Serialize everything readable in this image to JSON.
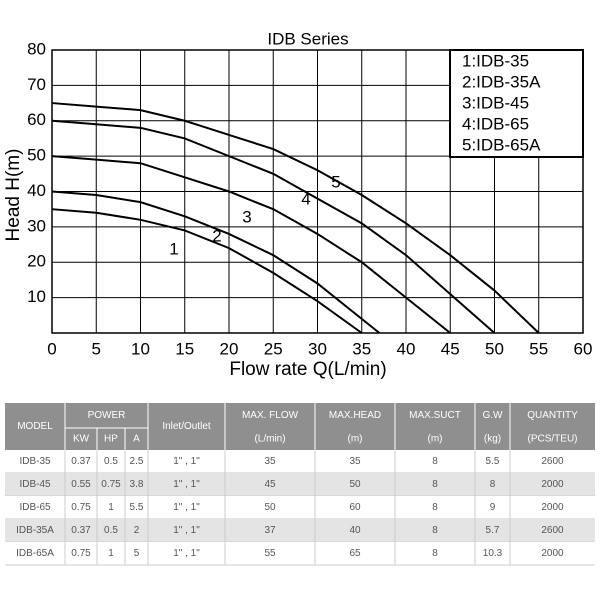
{
  "chart_data": {
    "type": "line",
    "title": "IDB Series",
    "x_label": "Flow rate Q(L/min)",
    "y_label": "Head H(m)",
    "xlim": [
      0,
      60
    ],
    "xticks": [
      0,
      5,
      10,
      15,
      20,
      25,
      30,
      35,
      40,
      45,
      50,
      55,
      60
    ],
    "ylim": [
      0,
      80
    ],
    "yticks": [
      10,
      20,
      30,
      40,
      50,
      60,
      70,
      80
    ],
    "grid": true,
    "legend": "top-right",
    "series": [
      {
        "name": "1:IDB-35",
        "label": "1",
        "color": "#000000",
        "x": [
          0,
          5,
          10,
          15,
          20,
          25,
          30,
          35
        ],
        "values": [
          35,
          34,
          32,
          29,
          24,
          17,
          9,
          0
        ]
      },
      {
        "name": "2:IDB-35A",
        "label": "2",
        "color": "#000000",
        "x": [
          0,
          5,
          10,
          15,
          20,
          25,
          30,
          35,
          37
        ],
        "values": [
          40,
          39,
          37,
          33,
          28,
          22,
          14,
          4,
          0
        ]
      },
      {
        "name": "3:IDB-45",
        "label": "3",
        "color": "#000000",
        "x": [
          0,
          5,
          10,
          15,
          20,
          25,
          30,
          35,
          40,
          45
        ],
        "values": [
          50,
          49,
          48,
          44,
          40,
          35,
          28,
          20,
          10,
          0
        ]
      },
      {
        "name": "4:IDB-65",
        "label": "4",
        "color": "#000000",
        "x": [
          0,
          5,
          10,
          15,
          20,
          25,
          30,
          35,
          40,
          45,
          50
        ],
        "values": [
          60,
          59,
          58,
          55,
          50,
          45,
          38,
          31,
          22,
          11,
          0
        ]
      },
      {
        "name": "5:IDB-65A",
        "label": "5",
        "color": "#000000",
        "x": [
          0,
          5,
          10,
          15,
          20,
          25,
          30,
          35,
          40,
          45,
          50,
          55
        ],
        "values": [
          65,
          64,
          63,
          60,
          56,
          52,
          46,
          39,
          31,
          22,
          12,
          0
        ]
      }
    ]
  },
  "table": {
    "header_top": [
      "MODEL",
      "POWER",
      "Inlet/Outlet",
      "MAX. FLOW",
      "MAX.HEAD",
      "MAX.SUCT",
      "G.W",
      "QUANTITY"
    ],
    "header_sub": [
      "KW",
      "HP",
      "A",
      "(L/min)",
      "(m)",
      "(m)",
      "(kg)",
      "(PCS/TEU)"
    ],
    "rows": [
      [
        "IDB-35",
        "0.37",
        "0.5",
        "2.5",
        "1\" , 1\"",
        "35",
        "35",
        "8",
        "5.5",
        "2600"
      ],
      [
        "IDB-45",
        "0.55",
        "0.75",
        "3.8",
        "1\" , 1\"",
        "45",
        "50",
        "8",
        "8",
        "2000"
      ],
      [
        "IDB-65",
        "0.75",
        "1",
        "5.5",
        "1\" , 1\"",
        "50",
        "60",
        "8",
        "9",
        "2000"
      ],
      [
        "IDB-35A",
        "0.37",
        "0.5",
        "2",
        "1\" , 1\"",
        "37",
        "40",
        "8",
        "5.7",
        "2600"
      ],
      [
        "IDB-65A",
        "0.75",
        "1",
        "5",
        "1\" , 1\"",
        "55",
        "65",
        "8",
        "10.3",
        "2000"
      ]
    ]
  }
}
